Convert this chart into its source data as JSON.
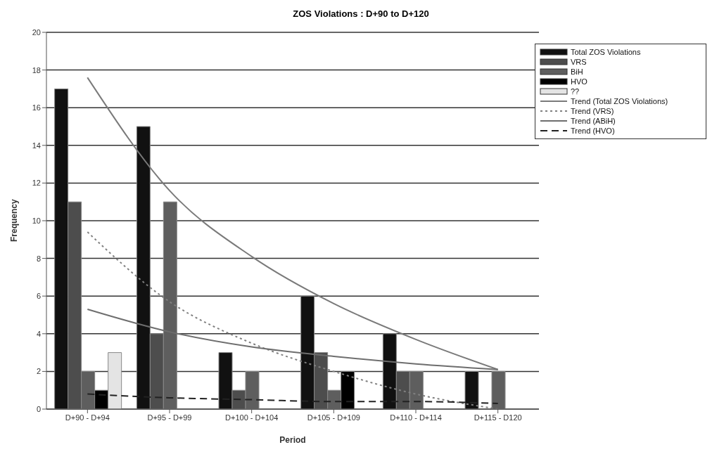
{
  "chart_data": {
    "type": "bar",
    "title": "ZOS Violations : D+90 to D+120",
    "xlabel": "Period",
    "ylabel": "Frequency",
    "categories": [
      "D+90 - D+94",
      "D+95 - D+99",
      "D+100 - D+104",
      "D+105 - D+109",
      "D+110 - D+114",
      "D+115 - D120"
    ],
    "series": [
      {
        "name": "Total ZOS Violations",
        "color": "#111111",
        "values": [
          17,
          15,
          3,
          6,
          4,
          2
        ]
      },
      {
        "name": "VRS",
        "color": "#4d4d4d",
        "values": [
          11,
          4,
          1,
          3,
          2,
          0
        ]
      },
      {
        "name": "BiH",
        "color": "#5e5e5e",
        "values": [
          2,
          11,
          2,
          1,
          2,
          2
        ]
      },
      {
        "name": "HVO",
        "color": "#000000",
        "values": [
          1,
          0,
          0,
          2,
          0,
          0
        ]
      },
      {
        "name": "??",
        "color": "#e4e4e4",
        "values": [
          3,
          0,
          0,
          0,
          0,
          0
        ]
      },
      {
        "name": "Trend (Total ZOS Violations)",
        "type": "line",
        "color": "#7a7a7a",
        "line_style": "solid",
        "values": [
          17.6,
          11.6,
          8.1,
          5.6,
          3.7,
          2.1
        ]
      },
      {
        "name": "Trend (VRS)",
        "type": "line",
        "color": "#808080",
        "line_style": "dotted",
        "values": [
          9.4,
          5.7,
          3.5,
          2.0,
          0.8,
          0
        ]
      },
      {
        "name": "Trend (ABiH)",
        "type": "line",
        "color": "#6e6e6e",
        "line_style": "solid",
        "values": [
          5.3,
          4.1,
          3.3,
          2.8,
          2.4,
          2.1
        ]
      },
      {
        "name": "Trend (HVO)",
        "type": "line",
        "color": "#222222",
        "line_style": "dashed",
        "values": [
          0.8,
          0.6,
          0.5,
          0.4,
          0.4,
          0.3
        ]
      }
    ],
    "ylim": [
      0,
      20
    ],
    "yticks": [
      0,
      2,
      4,
      6,
      8,
      10,
      12,
      14,
      16,
      18,
      20
    ],
    "grid": "y",
    "legend": "top right"
  }
}
